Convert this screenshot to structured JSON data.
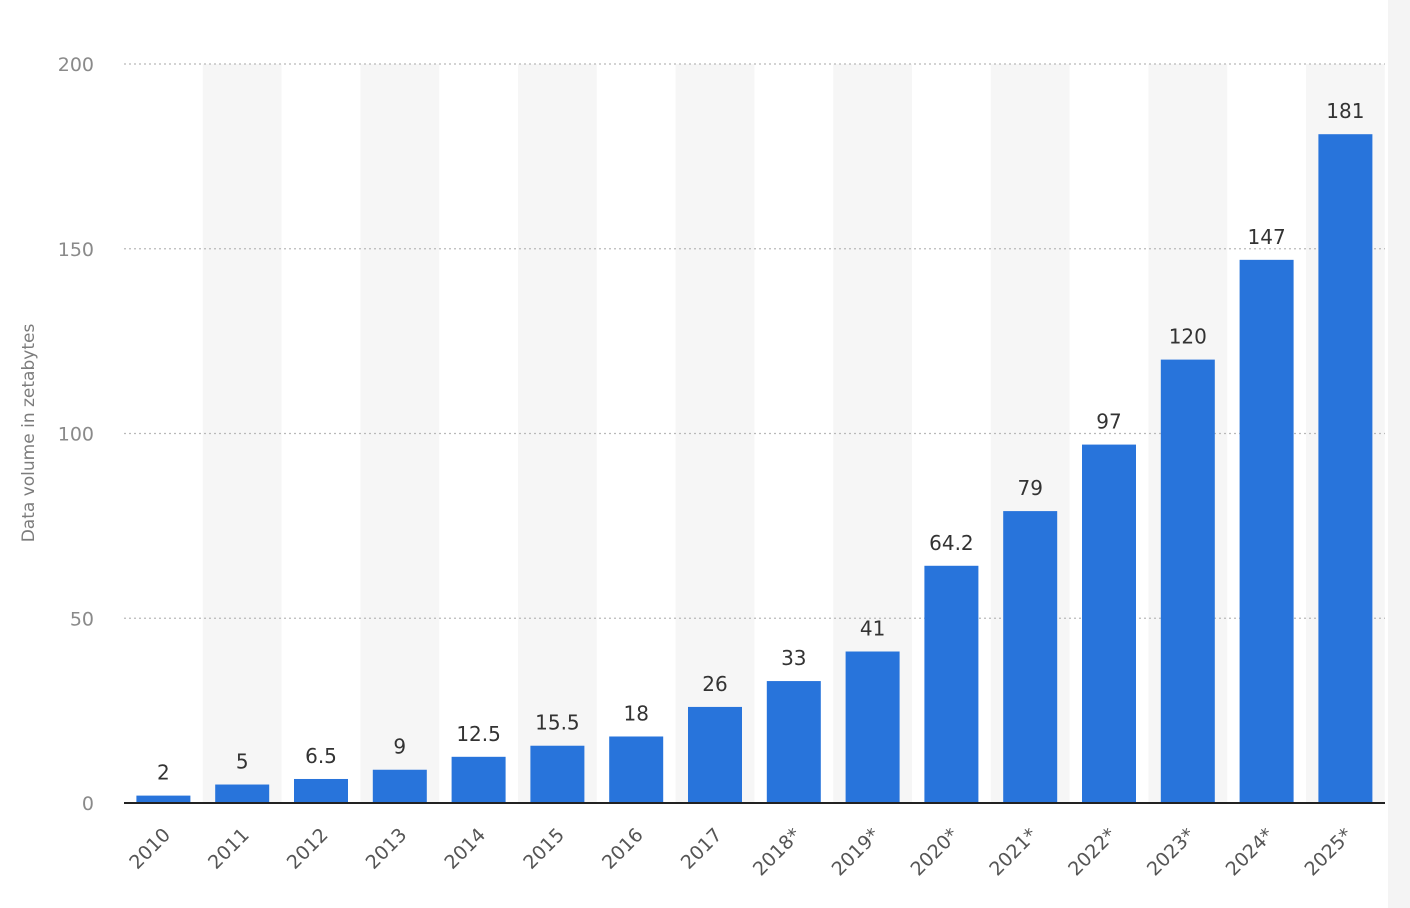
{
  "chart_data": {
    "type": "bar",
    "categories": [
      "2010",
      "2011",
      "2012",
      "2013",
      "2014",
      "2015",
      "2016",
      "2017",
      "2018*",
      "2019*",
      "2020*",
      "2021*",
      "2022*",
      "2023*",
      "2024*",
      "2025*"
    ],
    "values": [
      2,
      5,
      6.5,
      9,
      12.5,
      15.5,
      18,
      26,
      33,
      41,
      64.2,
      79,
      97,
      120,
      147,
      181
    ],
    "value_labels": [
      "2",
      "5",
      "6.5",
      "9",
      "12.5",
      "15.5",
      "18",
      "26",
      "33",
      "41",
      "64.2",
      "79",
      "97",
      "120",
      "147",
      "181"
    ],
    "ylabel": "Data volume in zetabytes",
    "xlabel": "",
    "ylim": [
      0,
      200
    ],
    "yticks": [
      0,
      50,
      100,
      150,
      200
    ],
    "grid": true,
    "colors": {
      "bar": "#2874db",
      "band": "#f6f6f6"
    }
  }
}
